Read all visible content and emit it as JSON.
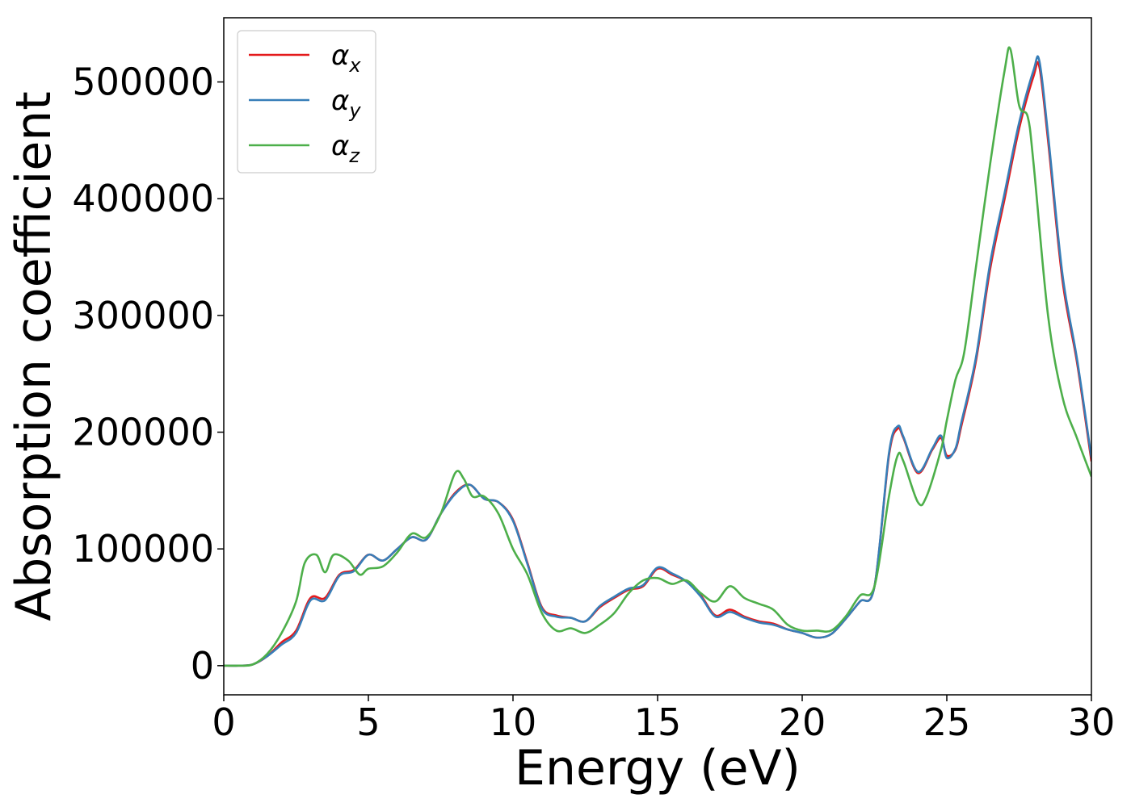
{
  "chart_data": {
    "type": "line",
    "title": "",
    "xlabel": "Energy (eV)",
    "ylabel": "Absorption coefficient",
    "xlim": [
      0,
      30
    ],
    "ylim": [
      -25000,
      555000
    ],
    "xticks": [
      0,
      5,
      10,
      15,
      20,
      25,
      30
    ],
    "xtick_labels": [
      "0",
      "5",
      "10",
      "15",
      "20",
      "25",
      "30"
    ],
    "yticks": [
      0,
      100000,
      200000,
      300000,
      400000,
      500000
    ],
    "ytick_labels": [
      "0",
      "100000",
      "200000",
      "300000",
      "400000",
      "500000"
    ],
    "grid": false,
    "legend": {
      "position": "top-left"
    },
    "series": [
      {
        "name": "αx",
        "symbol": "α",
        "subscript": "x",
        "color": "#e41a1c",
        "x": [
          0,
          0.5,
          1,
          1.5,
          2,
          2.5,
          3,
          3.5,
          4,
          4.5,
          5,
          5.5,
          6,
          6.5,
          7,
          7.5,
          8,
          8.5,
          9,
          9.5,
          10,
          10.5,
          11,
          11.5,
          12,
          12.5,
          13,
          13.5,
          14,
          14.5,
          15,
          15.5,
          16,
          16.5,
          17,
          17.5,
          18,
          18.5,
          19,
          19.5,
          20,
          20.5,
          21,
          21.5,
          22,
          22.5,
          23,
          23.3,
          23.5,
          24,
          24.5,
          24.8,
          25,
          25.3,
          25.5,
          26,
          26.5,
          27,
          27.5,
          28,
          28.2,
          28.5,
          29,
          29.5,
          30
        ],
        "y": [
          0,
          0,
          1000,
          8000,
          20000,
          30000,
          58000,
          58000,
          78000,
          82000,
          95000,
          90000,
          100000,
          110000,
          108000,
          130000,
          148000,
          155000,
          143000,
          140000,
          125000,
          88000,
          50000,
          43000,
          41000,
          38000,
          50000,
          58000,
          65000,
          68000,
          83000,
          78000,
          72000,
          60000,
          43000,
          48000,
          42000,
          38000,
          36000,
          31000,
          28000,
          24000,
          27000,
          40000,
          55000,
          68000,
          180000,
          203000,
          195000,
          165000,
          185000,
          195000,
          180000,
          185000,
          205000,
          260000,
          340000,
          400000,
          460000,
          505000,
          513000,
          450000,
          330000,
          260000,
          175000
        ]
      },
      {
        "name": "αy",
        "symbol": "α",
        "subscript": "y",
        "color": "#377eb8",
        "x": [
          0,
          0.5,
          1,
          1.5,
          2,
          2.5,
          3,
          3.5,
          4,
          4.5,
          5,
          5.5,
          6,
          6.5,
          7,
          7.5,
          8,
          8.5,
          9,
          9.5,
          10,
          10.5,
          11,
          11.5,
          12,
          12.5,
          13,
          13.5,
          14,
          14.5,
          15,
          15.5,
          16,
          16.5,
          17,
          17.5,
          18,
          18.5,
          19,
          19.5,
          20,
          20.5,
          21,
          21.5,
          22,
          22.5,
          23,
          23.3,
          23.5,
          24,
          24.5,
          24.8,
          25,
          25.3,
          25.5,
          26,
          26.5,
          27,
          27.5,
          28,
          28.2,
          28.5,
          29,
          29.5,
          30
        ],
        "y": [
          0,
          0,
          1000,
          8000,
          18000,
          28000,
          56000,
          56000,
          77000,
          81000,
          95000,
          90000,
          100000,
          110000,
          108000,
          130000,
          147000,
          155000,
          143000,
          140000,
          124000,
          87000,
          49000,
          42000,
          41000,
          38000,
          51000,
          59000,
          66000,
          69000,
          84000,
          79000,
          72000,
          59000,
          42000,
          46000,
          41000,
          37000,
          35000,
          31000,
          28000,
          24000,
          27000,
          40000,
          55000,
          68000,
          182000,
          205000,
          196000,
          166000,
          186000,
          197000,
          178000,
          186000,
          208000,
          263000,
          345000,
          405000,
          465000,
          510000,
          518000,
          455000,
          335000,
          263000,
          178000
        ]
      },
      {
        "name": "αz",
        "symbol": "α",
        "subscript": "z",
        "color": "#4daf4a",
        "x": [
          0,
          0.5,
          1,
          1.5,
          2,
          2.5,
          2.8,
          3.2,
          3.5,
          3.8,
          4.3,
          4.7,
          5,
          5.5,
          6,
          6.5,
          7,
          7.5,
          8,
          8.3,
          8.6,
          9,
          9.5,
          10,
          10.5,
          11,
          11.5,
          12,
          12.5,
          13,
          13.5,
          14,
          14.5,
          15,
          15.5,
          16,
          16.5,
          17,
          17.5,
          18,
          18.5,
          19,
          19.5,
          20,
          20.5,
          21,
          21.5,
          22,
          22.5,
          23,
          23.3,
          23.5,
          24,
          24.3,
          24.8,
          25,
          25.3,
          25.6,
          26,
          26.5,
          27,
          27.2,
          27.5,
          27.8,
          28,
          28.5,
          29,
          29.5,
          30
        ],
        "y": [
          0,
          0,
          1000,
          10000,
          28000,
          55000,
          88000,
          95000,
          80000,
          95000,
          90000,
          78000,
          83000,
          85000,
          97000,
          113000,
          110000,
          130000,
          165000,
          160000,
          145000,
          145000,
          130000,
          100000,
          78000,
          45000,
          30000,
          32000,
          28000,
          35000,
          45000,
          62000,
          73000,
          75000,
          70000,
          73000,
          62000,
          55000,
          68000,
          58000,
          53000,
          48000,
          35000,
          30000,
          30000,
          30000,
          42000,
          60000,
          68000,
          145000,
          180000,
          175000,
          140000,
          145000,
          185000,
          210000,
          245000,
          268000,
          340000,
          430000,
          510000,
          528000,
          480000,
          470000,
          430000,
          300000,
          230000,
          195000,
          162000
        ]
      }
    ]
  }
}
